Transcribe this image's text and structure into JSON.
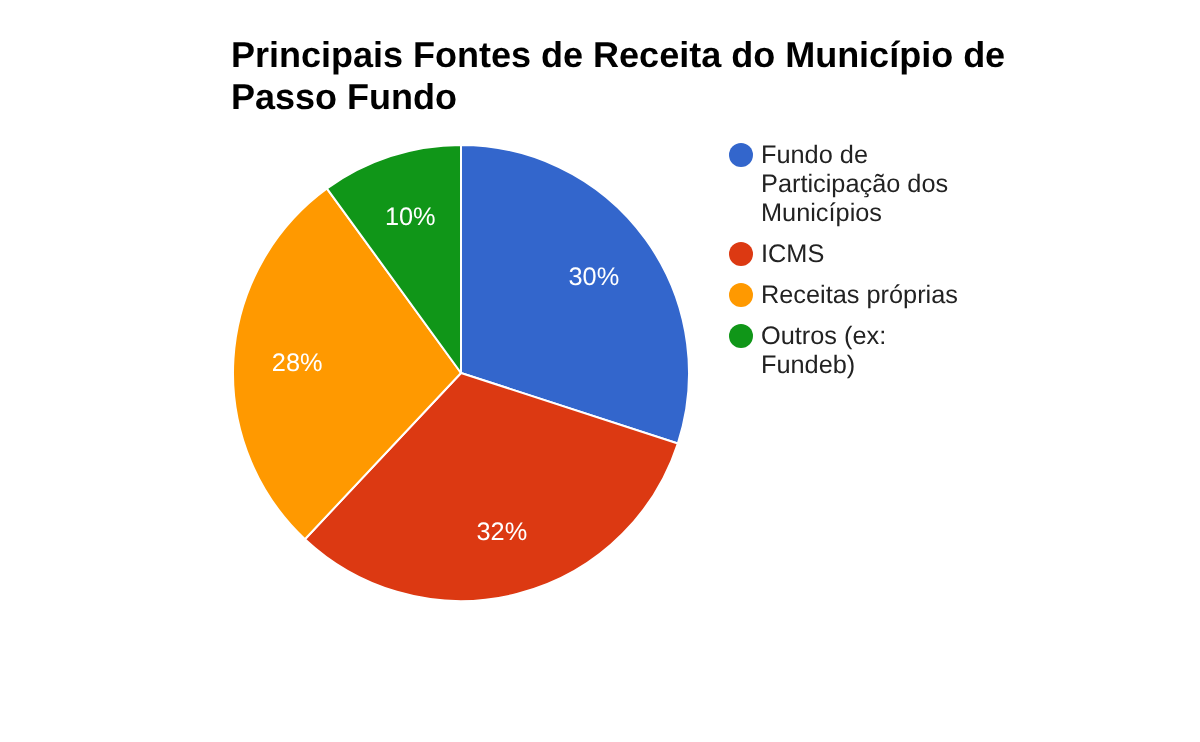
{
  "chart_data": {
    "type": "pie",
    "title": "Principais Fontes de Receita do Município de Passo Fundo",
    "categories": [
      "Fundo de Participação dos Municípios",
      "ICMS",
      "Receitas próprias",
      "Outros (ex: Fundeb)"
    ],
    "values": [
      30,
      32,
      28,
      10
    ],
    "colors": [
      "#3366cc",
      "#dc3912",
      "#ff9900",
      "#109618"
    ],
    "value_labels": [
      "30%",
      "32%",
      "28%",
      "10%"
    ],
    "legend": "right"
  }
}
